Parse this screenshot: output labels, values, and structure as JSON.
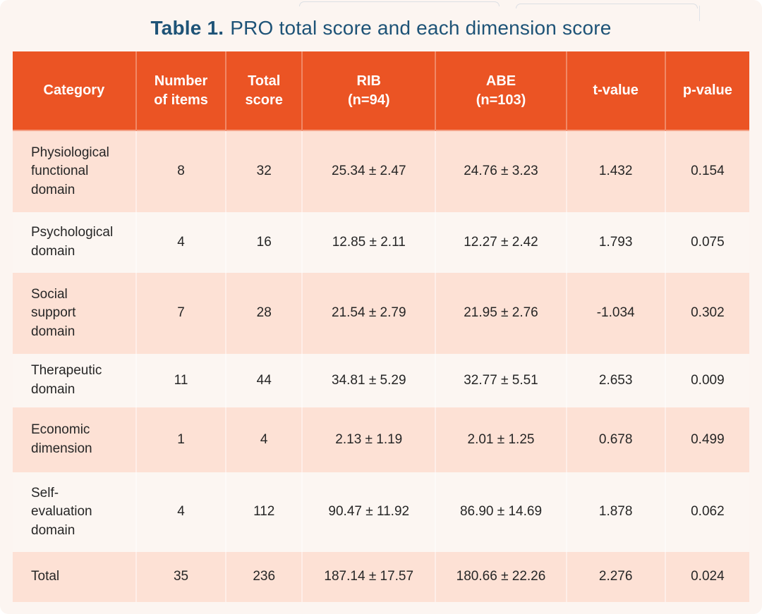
{
  "title": {
    "label": "Table 1.",
    "text": "PRO total score and each dimension score"
  },
  "colors": {
    "header_bg": "#EB5424",
    "row_pink": "#FDE1D5",
    "row_light": "#FCF6F2",
    "page_bg": "#FCF5F1",
    "title_blue": "#1E5377",
    "body_text": "#262626"
  },
  "table": {
    "columns": [
      {
        "label": "Category"
      },
      {
        "label": "Number\nof items"
      },
      {
        "label": "Total\nscore"
      },
      {
        "label": "RIB\n(n=94)"
      },
      {
        "label": "ABE\n(n=103)"
      },
      {
        "label": "t-value"
      },
      {
        "label": "p-value"
      }
    ],
    "rows": [
      {
        "category": "Physiological\nfunctional\ndomain",
        "items": "8",
        "total_score": "32",
        "rib": "25.34 ± 2.47",
        "abe": "24.76 ± 3.23",
        "t_value": "1.432",
        "p_value": "0.154"
      },
      {
        "category": "Psychological\ndomain",
        "items": "4",
        "total_score": "16",
        "rib": "12.85 ± 2.11",
        "abe": "12.27 ± 2.42",
        "t_value": "1.793",
        "p_value": "0.075"
      },
      {
        "category": "Social\nsupport\ndomain",
        "items": "7",
        "total_score": "28",
        "rib": "21.54 ± 2.79",
        "abe": "21.95 ± 2.76",
        "t_value": "-1.034",
        "p_value": "0.302"
      },
      {
        "category": "Therapeutic\ndomain",
        "items": "11",
        "total_score": "44",
        "rib": "34.81 ± 5.29",
        "abe": "32.77 ± 5.51",
        "t_value": "2.653",
        "p_value": "0.009"
      },
      {
        "category": "Economic\ndimension",
        "items": "1",
        "total_score": "4",
        "rib": "2.13 ± 1.19",
        "abe": "2.01 ± 1.25",
        "t_value": "0.678",
        "p_value": "0.499"
      },
      {
        "category": "Self-\nevaluation\ndomain",
        "items": "4",
        "total_score": "112",
        "rib": "90.47 ± 11.92",
        "abe": "86.90 ± 14.69",
        "t_value": "1.878",
        "p_value": "0.062"
      },
      {
        "category": "Total",
        "items": "35",
        "total_score": "236",
        "rib": "187.14 ± 17.57",
        "abe": "180.66 ± 22.26",
        "t_value": "2.276",
        "p_value": "0.024"
      }
    ]
  }
}
